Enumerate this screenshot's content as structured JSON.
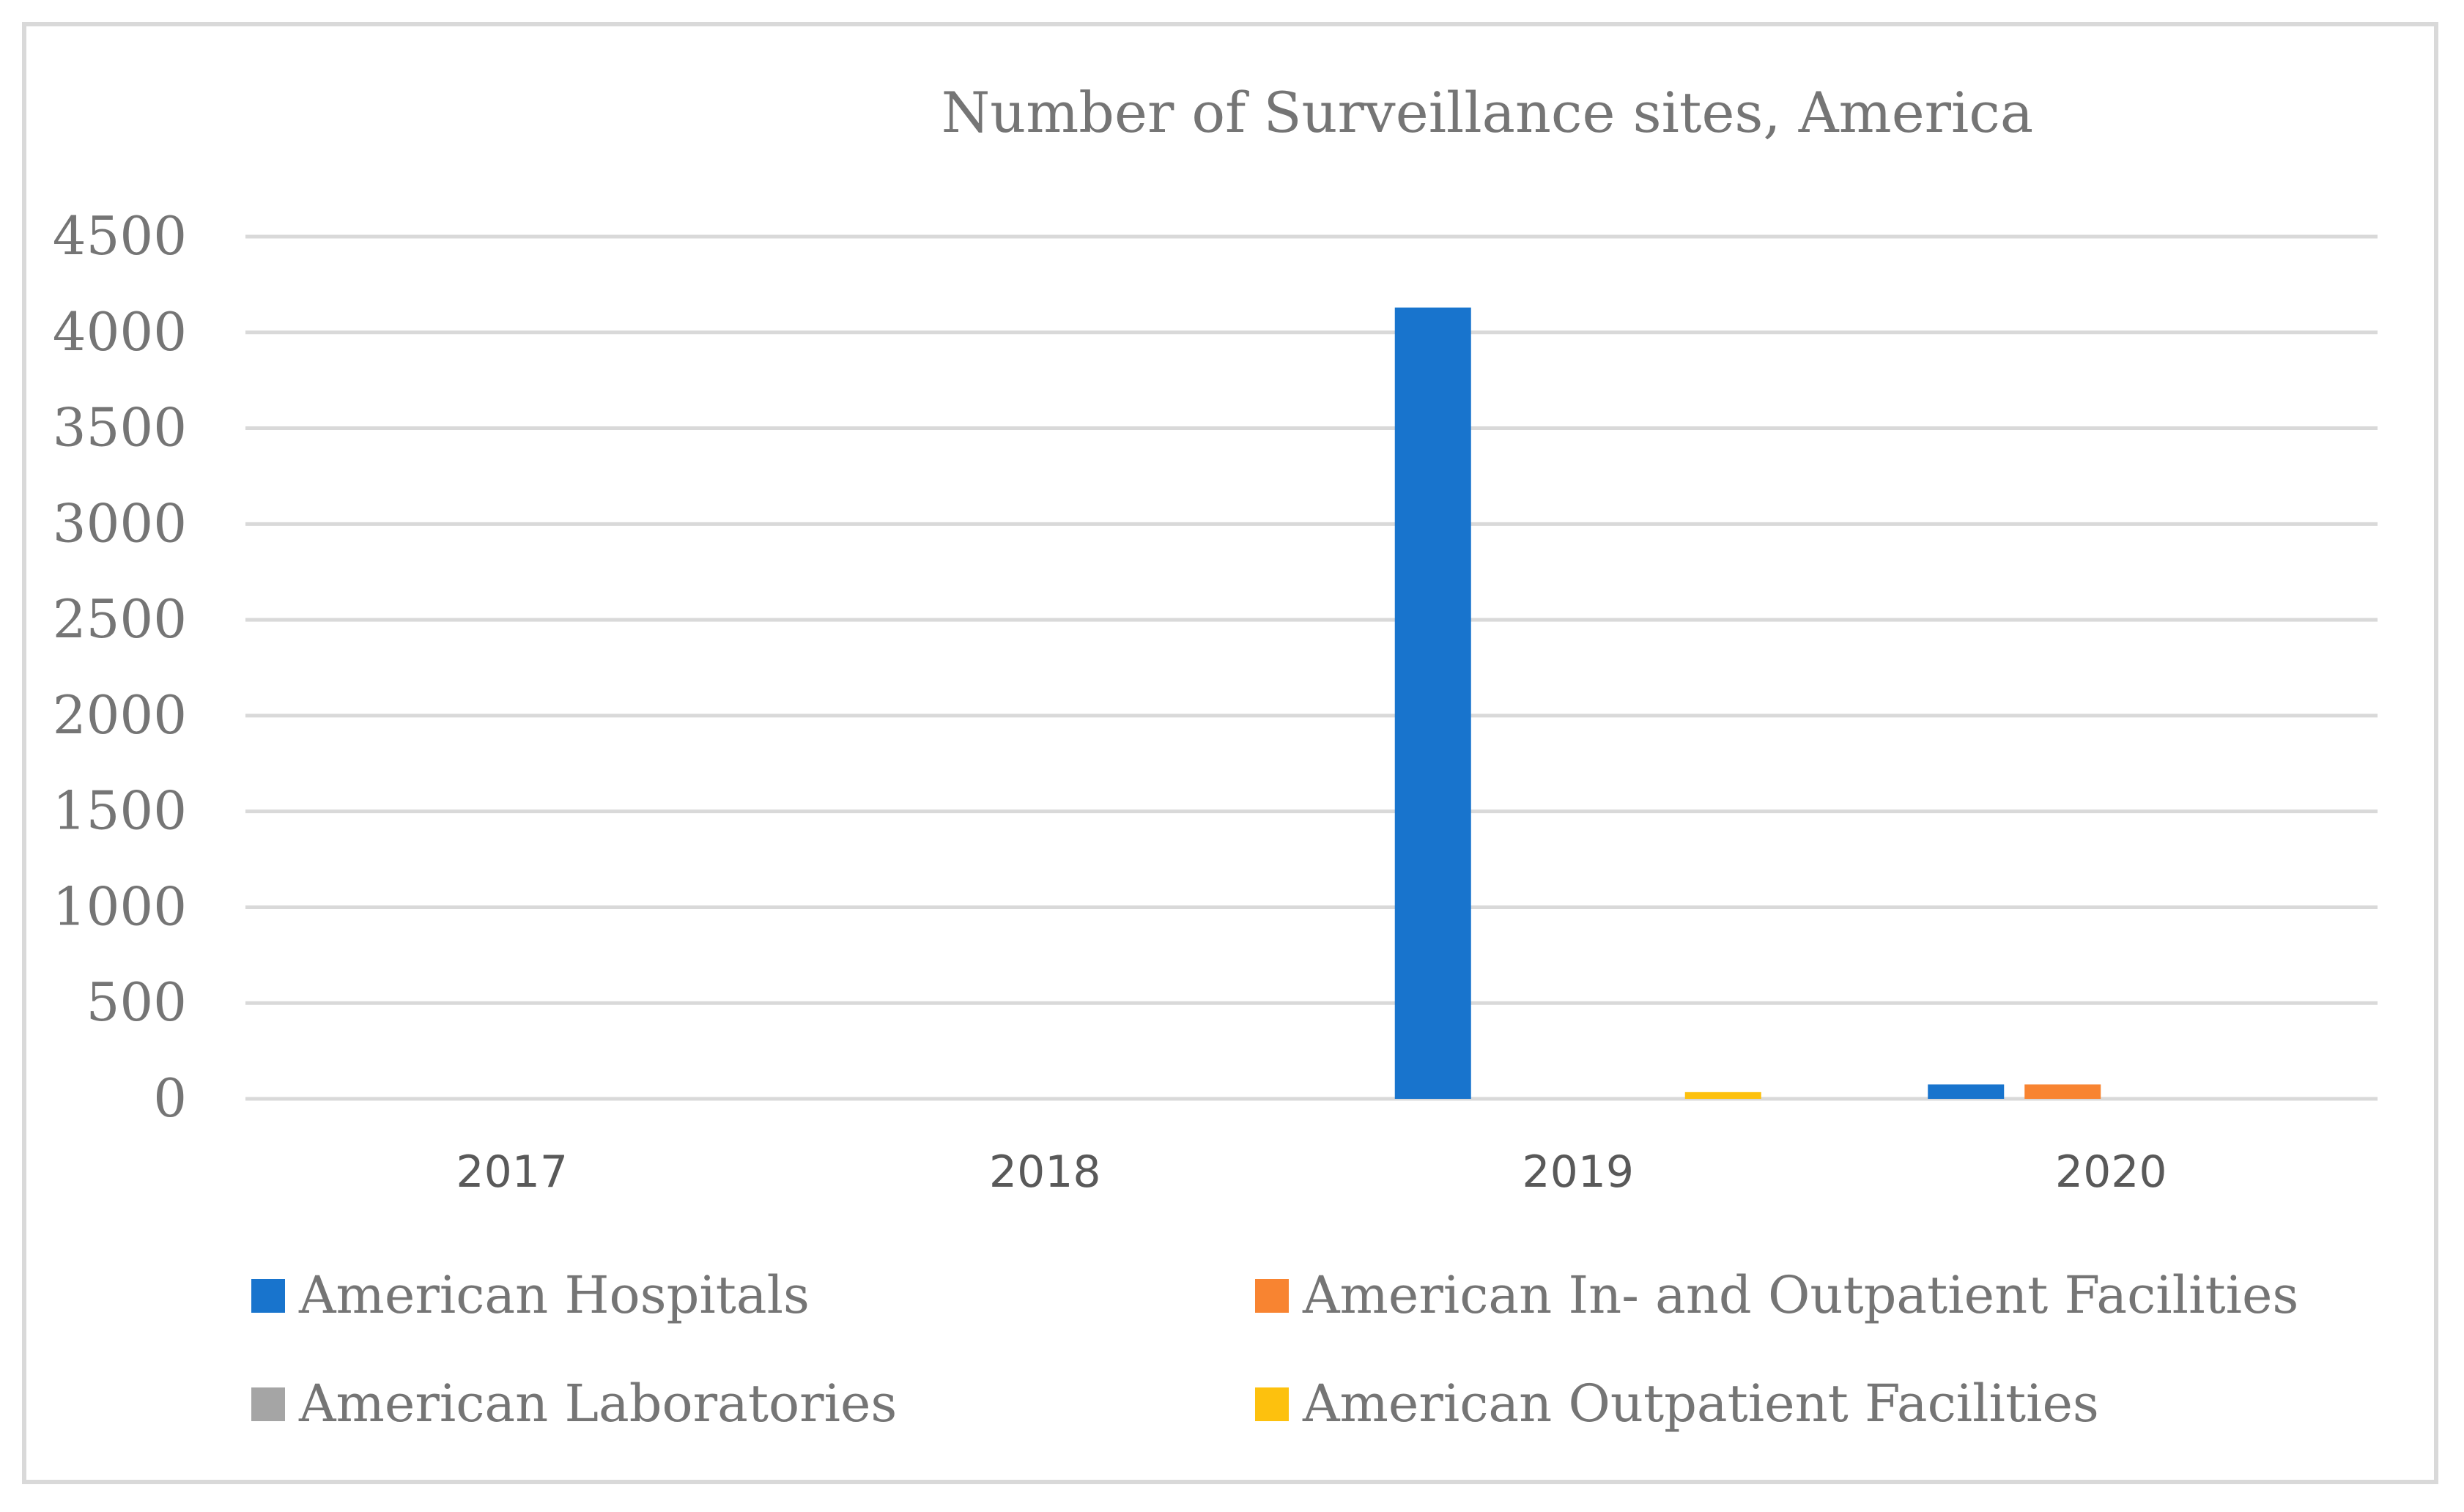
{
  "chart_data": {
    "type": "bar",
    "title": "Number of Surveillance sites, America",
    "xlabel": "",
    "ylabel": "",
    "categories": [
      "2017",
      "2018",
      "2019",
      "2020"
    ],
    "ylim": [
      0,
      4500
    ],
    "yticks": [
      0,
      500,
      1000,
      1500,
      2000,
      2500,
      3000,
      3500,
      4000,
      4500
    ],
    "grid": true,
    "legend_position": "bottom",
    "series": [
      {
        "name": "American Hospitals",
        "color": "#1874cd",
        "values": [
          0,
          0,
          4130,
          75
        ]
      },
      {
        "name": "American In- and Outpatient Facilities",
        "color": "#f88431",
        "values": [
          0,
          0,
          0,
          75
        ]
      },
      {
        "name": "American Laboratories",
        "color": "#a5a5a5",
        "values": [
          0,
          0,
          0,
          0
        ]
      },
      {
        "name": "American Outpatient Facilities",
        "color": "#fdc10e",
        "values": [
          0,
          0,
          35,
          0
        ]
      }
    ]
  }
}
